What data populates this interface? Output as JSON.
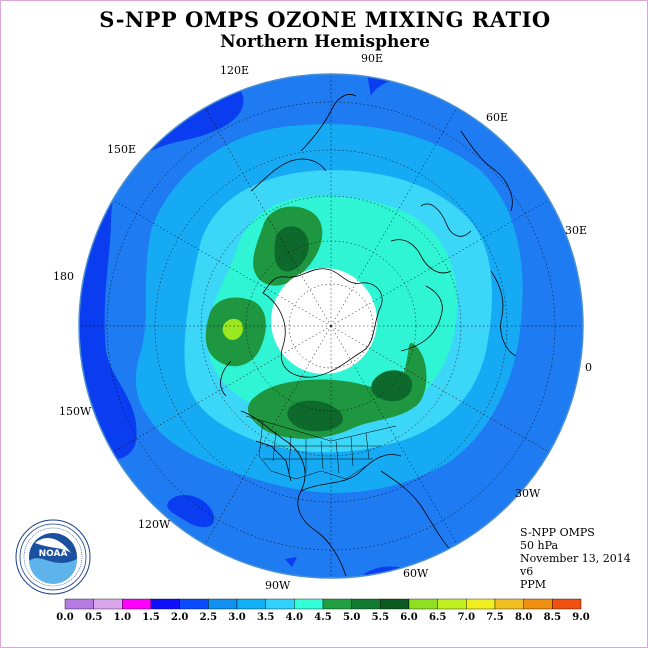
{
  "title": "S-NPP OMPS OZONE MIXING RATIO",
  "subtitle": "Northern Hemisphere",
  "logo": {
    "text": "NOAA",
    "ring_text": "NATIONAL OCEANIC AND ATMOSPHERIC ADMINISTRATION · U.S. DEPARTMENT OF COMMERCE"
  },
  "longitude_labels": [
    "90E",
    "60E",
    "30E",
    "0",
    "30W",
    "60W",
    "90W",
    "120W",
    "150W",
    "180",
    "150E",
    "120E"
  ],
  "info": {
    "instrument": "S-NPP OMPS",
    "level": "50 hPa",
    "date": "November 13, 2014",
    "version": "v6",
    "units": "PPM"
  },
  "colorbar": {
    "labels": [
      "0.0",
      "0.5",
      "1.0",
      "1.5",
      "2.0",
      "2.5",
      "3.0",
      "3.5",
      "4.0",
      "4.5",
      "5.0",
      "5.5",
      "6.0",
      "6.5",
      "7.0",
      "7.5",
      "8.0",
      "8.5",
      "9.0"
    ],
    "colors": [
      "#b57be0",
      "#d9a6ec",
      "#ff00ff",
      "#1010ff",
      "#0a4bff",
      "#1090f0",
      "#10b0f8",
      "#30d0ff",
      "#30ffd8",
      "#20a040",
      "#107a30",
      "#0a5a20",
      "#90e020",
      "#c0f020",
      "#f0f020",
      "#f0c020",
      "#f09010",
      "#f05010",
      "#e00010",
      "#806040"
    ]
  },
  "colors": {
    "level_2_0": "#0a3cf0",
    "level_2_5": "#1e7bf2",
    "level_3_0": "#16aaf4",
    "level_3_5": "#3cd6f8",
    "level_4_0": "#30f5d5",
    "level_4_5": "#1f9640",
    "level_5_0": "#0e6a2c",
    "level_5_5": "#9ae820",
    "no_data": "#ffffff"
  }
}
